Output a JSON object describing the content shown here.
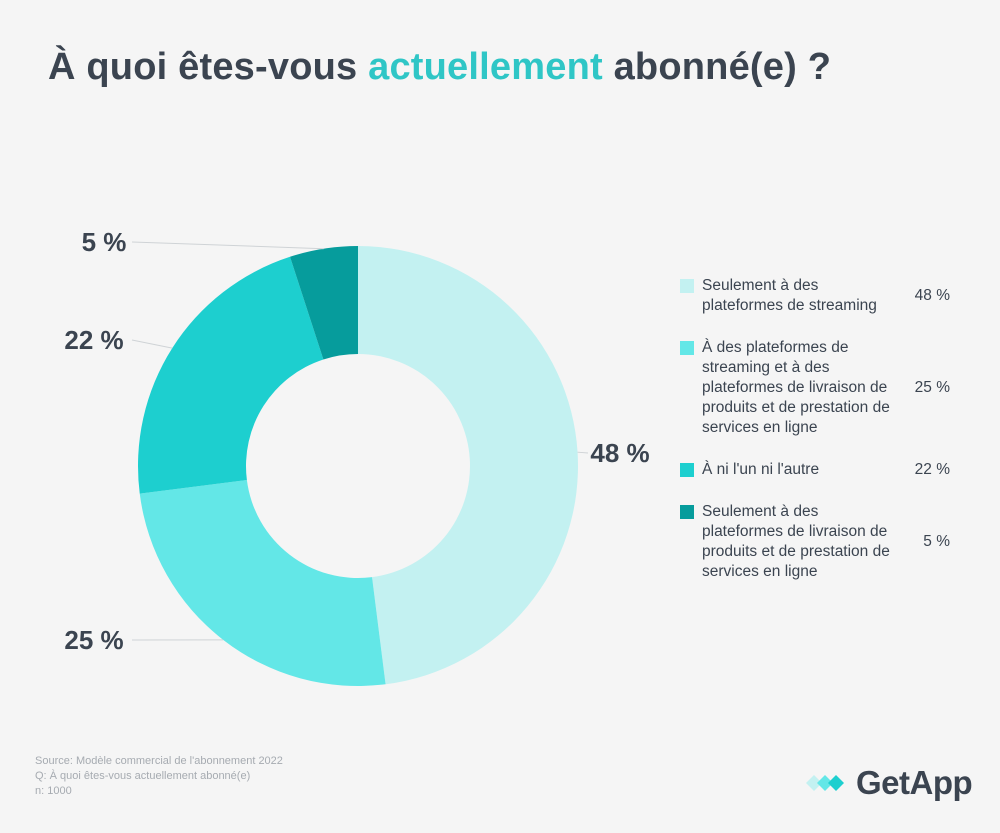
{
  "title": {
    "prefix": "À quoi êtes-vous ",
    "accent": "actuellement",
    "suffix": " abonné(e) ?"
  },
  "colors": {
    "accent": "#2fc6c6",
    "text": "#3b4450",
    "muted": "#a6abb1",
    "background": "#f5f5f5"
  },
  "chart_data": {
    "type": "pie",
    "variant": "donut",
    "categories": [
      "Seulement à des plateformes de streaming",
      "À des plateformes de streaming et à des plateformes de livraison de produits et de prestation de services en ligne",
      "À ni l'un ni l'autre",
      "Seulement à des plateformes de livraison de produits et de prestation de services en ligne"
    ],
    "values": [
      48,
      25,
      22,
      5
    ],
    "data_labels": [
      "48 %",
      "25 %",
      "22 %",
      "5 %"
    ],
    "colors": [
      "#c3f1f1",
      "#63e7e7",
      "#1dcfcf",
      "#069c9c"
    ],
    "legend_position": "right"
  },
  "legend": [
    {
      "label": "Seulement à des plateformes de streaming",
      "value": "48 %",
      "color": "#c3f1f1"
    },
    {
      "label": "À des plateformes de streaming et à des plateformes de livraison de produits et de prestation de services en ligne",
      "value": "25 %",
      "color": "#63e7e7"
    },
    {
      "label": "À ni l'un ni l'autre",
      "value": "22 %",
      "color": "#1dcfcf"
    },
    {
      "label": "Seulement à des plateformes de livraison de produits et de prestation de services en ligne",
      "value": "5 %",
      "color": "#069c9c"
    }
  ],
  "footnote": {
    "source": "Source: Modèle commercial de l'abonnement 2022",
    "question": "Q: À quoi êtes-vous actuellement abonné(e)",
    "n": "n: 1000"
  },
  "logo": {
    "text": "GetApp",
    "icon": "getapp-logo-icon"
  }
}
